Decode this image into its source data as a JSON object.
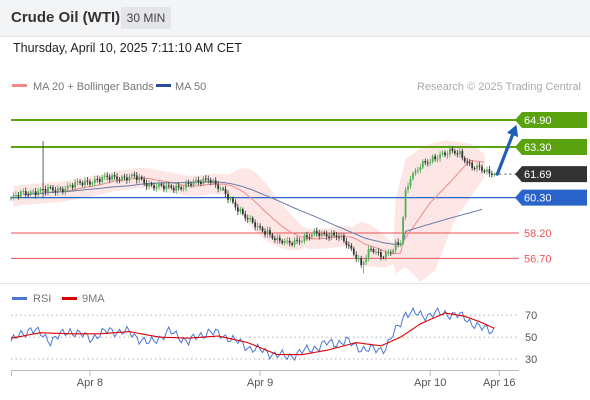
{
  "header": {
    "title": "Crude Oil (WTI)",
    "timeframe": "30 MIN",
    "datetime": "Thursday, April 10, 2025 7:11:10 AM CET"
  },
  "legend": {
    "ma20_label": "MA 20 + Bollinger Bands",
    "ma50_label": "MA 50",
    "credit": "Research © 2025 Trading Central",
    "rsi_label": "RSI",
    "ma9_label": "9MA"
  },
  "colors": {
    "candle_up": "#4caf50",
    "candle_down": "#333333",
    "resistance": "#5aa30f",
    "support": "#e85656",
    "pivot": "#2a63c9",
    "bollinger_fill": "#fde2e2",
    "ma20": "#f08a8a",
    "ma50": "#6a7aa8",
    "rsi": "#4a78d4",
    "rsi_ma": "#e00000",
    "arrow": "#1f5fb8"
  },
  "chart_data": [
    {
      "type": "candlestick",
      "title": "Crude Oil (WTI) 30 MIN",
      "x_ticks": [
        "Apr 8",
        "Apr 9",
        "Apr 10",
        "Apr 16"
      ],
      "ylim": [
        55.3,
        66.2
      ],
      "levels": [
        {
          "label": "64.90",
          "value": 64.9,
          "kind": "resistance"
        },
        {
          "label": "63.30",
          "value": 63.3,
          "kind": "resistance"
        },
        {
          "label": "61.69",
          "value": 61.69,
          "kind": "last"
        },
        {
          "label": "60.30",
          "value": 60.3,
          "kind": "pivot"
        },
        {
          "label": "58.20",
          "value": 58.2,
          "kind": "support"
        },
        {
          "label": "56.70",
          "value": 56.7,
          "kind": "support"
        }
      ],
      "anchors": [
        [
          0,
          60.25
        ],
        [
          5,
          60.55
        ],
        [
          10,
          60.7
        ],
        [
          18,
          60.75
        ],
        [
          26,
          61.05
        ],
        [
          34,
          61.35
        ],
        [
          42,
          61.5
        ],
        [
          50,
          61.5
        ],
        [
          56,
          61.1
        ],
        [
          63,
          60.85
        ],
        [
          70,
          61.0
        ],
        [
          76,
          61.2
        ],
        [
          80,
          61.5
        ],
        [
          84,
          60.9
        ],
        [
          88,
          60.3
        ],
        [
          92,
          59.7
        ],
        [
          96,
          59.0
        ],
        [
          100,
          58.5
        ],
        [
          104,
          58.3
        ],
        [
          108,
          57.7
        ],
        [
          112,
          57.6
        ],
        [
          116,
          57.8
        ],
        [
          120,
          57.9
        ],
        [
          124,
          58.2
        ],
        [
          128,
          58.15
        ],
        [
          132,
          58.0
        ],
        [
          136,
          57.6
        ],
        [
          140,
          56.9
        ],
        [
          142,
          56.3
        ],
        [
          146,
          57.2
        ],
        [
          150,
          56.9
        ],
        [
          154,
          57.1
        ],
        [
          156,
          57.4
        ],
        [
          158,
          57.6
        ],
        [
          160,
          60.6
        ],
        [
          162,
          61.6
        ],
        [
          166,
          62.2
        ],
        [
          170,
          62.4
        ],
        [
          174,
          62.9
        ],
        [
          178,
          63.05
        ],
        [
          182,
          62.8
        ],
        [
          186,
          62.3
        ],
        [
          190,
          62.05
        ],
        [
          193,
          61.7
        ],
        [
          196,
          61.69
        ]
      ],
      "spikes": [
        {
          "index": 13,
          "high": 63.65,
          "low": 60.3
        },
        {
          "index": 143,
          "low": 55.8
        }
      ],
      "ma20_ends": [
        [
          159,
          57.7
        ],
        [
          170,
          60.0
        ],
        [
          178,
          61.2
        ],
        [
          186,
          62.5
        ],
        [
          192,
          62.4
        ]
      ],
      "ma50_ends": [
        [
          160,
          58.3
        ],
        [
          176,
          59.0
        ],
        [
          186,
          59.4
        ],
        [
          191,
          59.6
        ]
      ],
      "bollinger_tail_upper": [
        [
          156,
          60.2
        ],
        [
          160,
          62.6
        ],
        [
          168,
          63.4
        ],
        [
          176,
          63.7
        ],
        [
          186,
          63.5
        ],
        [
          192,
          62.9
        ]
      ],
      "bollinger_tail_lower": [
        [
          156,
          55.8
        ],
        [
          160,
          56.2
        ],
        [
          166,
          55.3
        ],
        [
          172,
          56.0
        ],
        [
          180,
          59.0
        ],
        [
          192,
          61.5
        ]
      ],
      "projection": {
        "from": [
          196,
          61.69
        ],
        "to": [
          206,
          64.4
        ]
      }
    },
    {
      "type": "line",
      "title": "RSI",
      "ylim": [
        20,
        82
      ],
      "y_ticks": [
        70,
        50,
        30
      ],
      "series": [
        {
          "name": "RSI",
          "points": [
            [
              0,
              46
            ],
            [
              8,
              58
            ],
            [
              16,
              47
            ],
            [
              24,
              56
            ],
            [
              32,
              49
            ],
            [
              40,
              56
            ],
            [
              48,
              54
            ],
            [
              56,
              44
            ],
            [
              64,
              55
            ],
            [
              72,
              46
            ],
            [
              80,
              55
            ],
            [
              88,
              50
            ],
            [
              96,
              41
            ],
            [
              104,
              36
            ],
            [
              112,
              32
            ],
            [
              120,
              38
            ],
            [
              128,
              44
            ],
            [
              136,
              46
            ],
            [
              144,
              38
            ],
            [
              152,
              40
            ],
            [
              160,
              72
            ],
            [
              168,
              70
            ],
            [
              176,
              72
            ],
            [
              184,
              68
            ],
            [
              190,
              58
            ],
            [
              196,
              57
            ]
          ]
        },
        {
          "name": "9MA",
          "points": [
            [
              0,
              49
            ],
            [
              12,
              54
            ],
            [
              24,
              53
            ],
            [
              36,
              53
            ],
            [
              48,
              55
            ],
            [
              60,
              50
            ],
            [
              72,
              49
            ],
            [
              84,
              51
            ],
            [
              96,
              45
            ],
            [
              108,
              34
            ],
            [
              118,
              34
            ],
            [
              128,
              38
            ],
            [
              140,
              45
            ],
            [
              150,
              42
            ],
            [
              158,
              50
            ],
            [
              166,
              62
            ],
            [
              176,
              72
            ],
            [
              184,
              69
            ],
            [
              190,
              64
            ],
            [
              196,
              58
            ]
          ]
        }
      ]
    }
  ]
}
